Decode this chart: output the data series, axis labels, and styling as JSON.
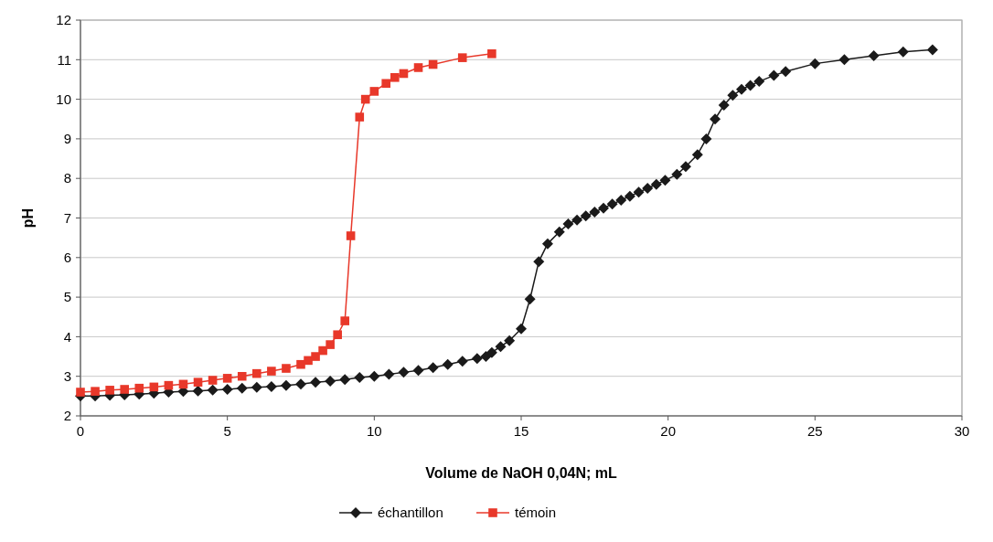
{
  "chart_data": {
    "type": "line",
    "xlabel": "Volume de NaOH 0,04N; mL",
    "ylabel": "pH",
    "xlim": [
      0,
      30
    ],
    "xticks": [
      0,
      5,
      10,
      15,
      20,
      25,
      30
    ],
    "ylim": [
      2,
      12
    ],
    "yticks": [
      2,
      3,
      4,
      5,
      6,
      7,
      8,
      9,
      10,
      11,
      12
    ],
    "grid": "y",
    "legend": "bottom",
    "series": [
      {
        "name": "échantillon",
        "color": "#1a1a1a",
        "marker": "diamond",
        "x": [
          0,
          0.5,
          1,
          1.5,
          2,
          2.5,
          3,
          3.5,
          4,
          4.5,
          5,
          5.5,
          6,
          6.5,
          7,
          7.5,
          8,
          8.5,
          9,
          9.5,
          10,
          10.5,
          11,
          11.5,
          12,
          12.5,
          13,
          13.5,
          13.8,
          14,
          14.3,
          14.6,
          15,
          15.3,
          15.6,
          15.9,
          16.3,
          16.6,
          16.9,
          17.2,
          17.5,
          17.8,
          18.1,
          18.4,
          18.7,
          19,
          19.3,
          19.6,
          19.9,
          20.3,
          20.6,
          21,
          21.3,
          21.6,
          21.9,
          22.2,
          22.5,
          22.8,
          23.1,
          23.6,
          24,
          25,
          26,
          27,
          28,
          29
        ],
        "values": [
          2.5,
          2.5,
          2.52,
          2.53,
          2.55,
          2.57,
          2.6,
          2.62,
          2.63,
          2.65,
          2.67,
          2.7,
          2.72,
          2.74,
          2.77,
          2.8,
          2.85,
          2.88,
          2.92,
          2.97,
          3.0,
          3.05,
          3.1,
          3.15,
          3.22,
          3.3,
          3.38,
          3.45,
          3.5,
          3.6,
          3.75,
          3.9,
          4.2,
          4.95,
          5.9,
          6.35,
          6.65,
          6.85,
          6.95,
          7.05,
          7.15,
          7.25,
          7.35,
          7.45,
          7.55,
          7.65,
          7.75,
          7.85,
          7.95,
          8.1,
          8.3,
          8.6,
          9.0,
          9.5,
          9.85,
          10.1,
          10.25,
          10.35,
          10.45,
          10.6,
          10.7,
          10.9,
          11.0,
          11.1,
          11.2,
          11.25
        ]
      },
      {
        "name": "témoin",
        "color": "#e8382a",
        "marker": "square",
        "x": [
          0,
          0.5,
          1,
          1.5,
          2,
          2.5,
          3,
          3.5,
          4,
          4.5,
          5,
          5.5,
          6,
          6.5,
          7,
          7.5,
          7.75,
          8,
          8.25,
          8.5,
          8.75,
          9,
          9.2,
          9.5,
          9.7,
          10,
          10.4,
          10.7,
          11,
          11.5,
          12,
          13,
          14
        ],
        "values": [
          2.6,
          2.62,
          2.65,
          2.67,
          2.7,
          2.73,
          2.77,
          2.8,
          2.85,
          2.9,
          2.95,
          3.0,
          3.07,
          3.13,
          3.2,
          3.3,
          3.4,
          3.5,
          3.65,
          3.8,
          4.05,
          4.4,
          6.55,
          9.55,
          10.0,
          10.2,
          10.4,
          10.55,
          10.65,
          10.8,
          10.88,
          11.05,
          11.15
        ]
      }
    ]
  }
}
